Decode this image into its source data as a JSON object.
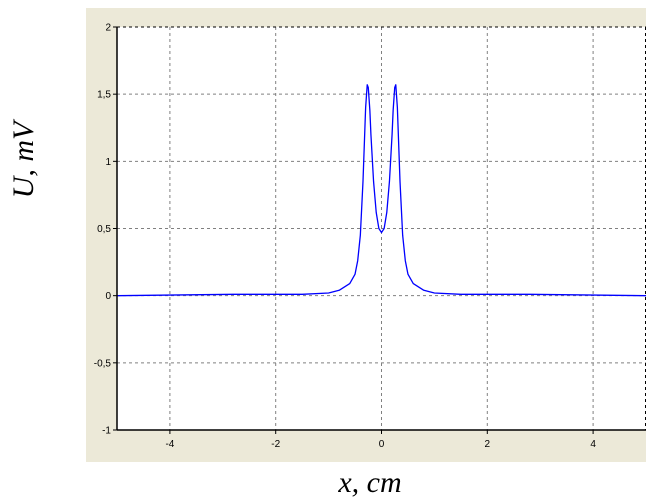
{
  "chart_data": {
    "type": "line",
    "title": "",
    "xlabel": "x, cm",
    "ylabel": "U, mV",
    "xlim": [
      -5,
      5
    ],
    "ylim": [
      -1,
      2
    ],
    "grid": true,
    "legend": "none",
    "x_ticks": [
      -4,
      -2,
      0,
      2,
      4
    ],
    "x_tick_labels": [
      "-4",
      "-2",
      "0",
      "2",
      "4"
    ],
    "y_ticks": [
      -1,
      -0.5,
      0,
      0.5,
      1,
      1.5,
      2
    ],
    "y_tick_labels": [
      "-1",
      "-0,5",
      "0",
      "0,5",
      "1",
      "1,5",
      "2"
    ],
    "series": [
      {
        "color": "#0000ff",
        "x": [
          -5,
          -2.8,
          -1.5,
          -1.0,
          -0.8,
          -0.6,
          -0.5,
          -0.45,
          -0.4,
          -0.35,
          -0.3,
          -0.27,
          -0.25,
          -0.22,
          -0.2,
          -0.15,
          -0.1,
          -0.05,
          0,
          0.05,
          0.1,
          0.15,
          0.2,
          0.22,
          0.25,
          0.27,
          0.3,
          0.35,
          0.4,
          0.45,
          0.5,
          0.6,
          0.8,
          1.0,
          1.5,
          2.8,
          5
        ],
        "y": [
          0,
          0.01,
          0.01,
          0.02,
          0.04,
          0.09,
          0.16,
          0.26,
          0.45,
          0.85,
          1.4,
          1.57,
          1.55,
          1.38,
          1.2,
          0.85,
          0.62,
          0.5,
          0.47,
          0.5,
          0.62,
          0.85,
          1.2,
          1.38,
          1.55,
          1.57,
          1.4,
          0.85,
          0.45,
          0.26,
          0.16,
          0.09,
          0.04,
          0.02,
          0.01,
          0.01,
          0
        ]
      }
    ]
  }
}
